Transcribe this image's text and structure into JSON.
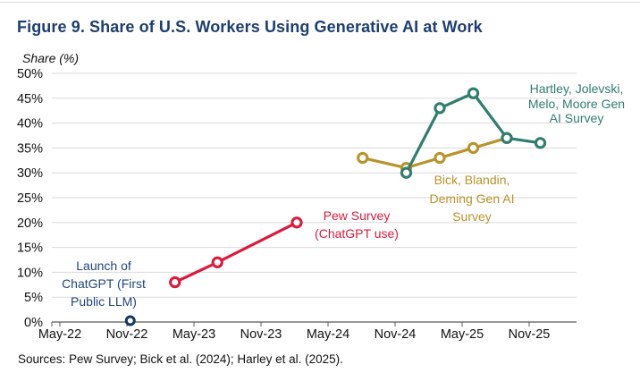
{
  "title": "Figure 9. Share of U.S. Workers Using Generative AI at Work",
  "y_axis_title": "Share (%)",
  "sources": "Sources: Pew Survey; Bick et al. (2024); Harley et al. (2025).",
  "colors": {
    "title_navy": "#1E3E70",
    "navy_dark": "#17375E",
    "red": "#DB1A3C",
    "gold": "#B7942B",
    "teal": "#2F7D6E",
    "grid": "#DADADA",
    "axis": "#595959",
    "tick_text": "#111111"
  },
  "annotations": {
    "launch": {
      "lines": [
        "Launch of",
        "ChatGPT (First",
        "Public LLM)"
      ]
    },
    "pew": {
      "lines": [
        "Pew Survey",
        "(ChatGPT use)"
      ]
    },
    "bick": {
      "lines": [
        "Bick, Blandin,",
        "Deming Gen AI",
        "Survey"
      ]
    },
    "hartley": {
      "lines": [
        "Hartley, Jolevski,",
        "Melo, Moore Gen",
        "AI Survey"
      ]
    }
  },
  "chart_data": {
    "type": "line",
    "title": "Figure 9. Share of U.S. Workers Using Generative AI at Work",
    "ylabel": "Share (%)",
    "ylim": [
      0,
      50
    ],
    "ytick_step": 5,
    "ytick_labels": [
      "0%",
      "5%",
      "10%",
      "15%",
      "20%",
      "25%",
      "30%",
      "35%",
      "40%",
      "45%",
      "50%"
    ],
    "xtick_labels": [
      "May-22",
      "Nov-22",
      "May-23",
      "Nov-23",
      "May-24",
      "Nov-24",
      "May-25",
      "Nov-25"
    ],
    "xtick_months": [
      0,
      6,
      12,
      18,
      24,
      30,
      36,
      42
    ],
    "grid": true,
    "legend_position": "inline-labels",
    "series": [
      {
        "name": "Pew Survey (ChatGPT use)",
        "color_key": "red",
        "points": [
          {
            "date": "Mar-23",
            "month": 10.3,
            "value": 8
          },
          {
            "date": "Jul-23",
            "month": 14.1,
            "value": 12
          },
          {
            "date": "Feb-24",
            "month": 21.2,
            "value": 20
          }
        ]
      },
      {
        "name": "Bick, Blandin, Deming Gen AI Survey",
        "color_key": "gold",
        "points": [
          {
            "date": "Aug-24",
            "month": 27.1,
            "value": 33
          },
          {
            "date": "Dec-24",
            "month": 31,
            "value": 31
          },
          {
            "date": "Mar-25",
            "month": 34,
            "value": 33
          },
          {
            "date": "Jun-25",
            "month": 37,
            "value": 35
          },
          {
            "date": "Sep-25",
            "month": 40,
            "value": 37
          }
        ]
      },
      {
        "name": "Hartley, Jolevski, Melo, Moore Gen AI Survey",
        "color_key": "teal",
        "points": [
          {
            "date": "Dec-24",
            "month": 31,
            "value": 30
          },
          {
            "date": "Mar-25",
            "month": 34,
            "value": 43
          },
          {
            "date": "Jun-25",
            "month": 37,
            "value": 46
          },
          {
            "date": "Sep-25",
            "month": 40,
            "value": 37
          },
          {
            "date": "Dec-25",
            "month": 43,
            "value": 36
          }
        ]
      }
    ],
    "event_marker": {
      "label": "Launch of ChatGPT (First Public LLM)",
      "date": "Nov-22",
      "month": 6.3,
      "value": 0
    }
  }
}
